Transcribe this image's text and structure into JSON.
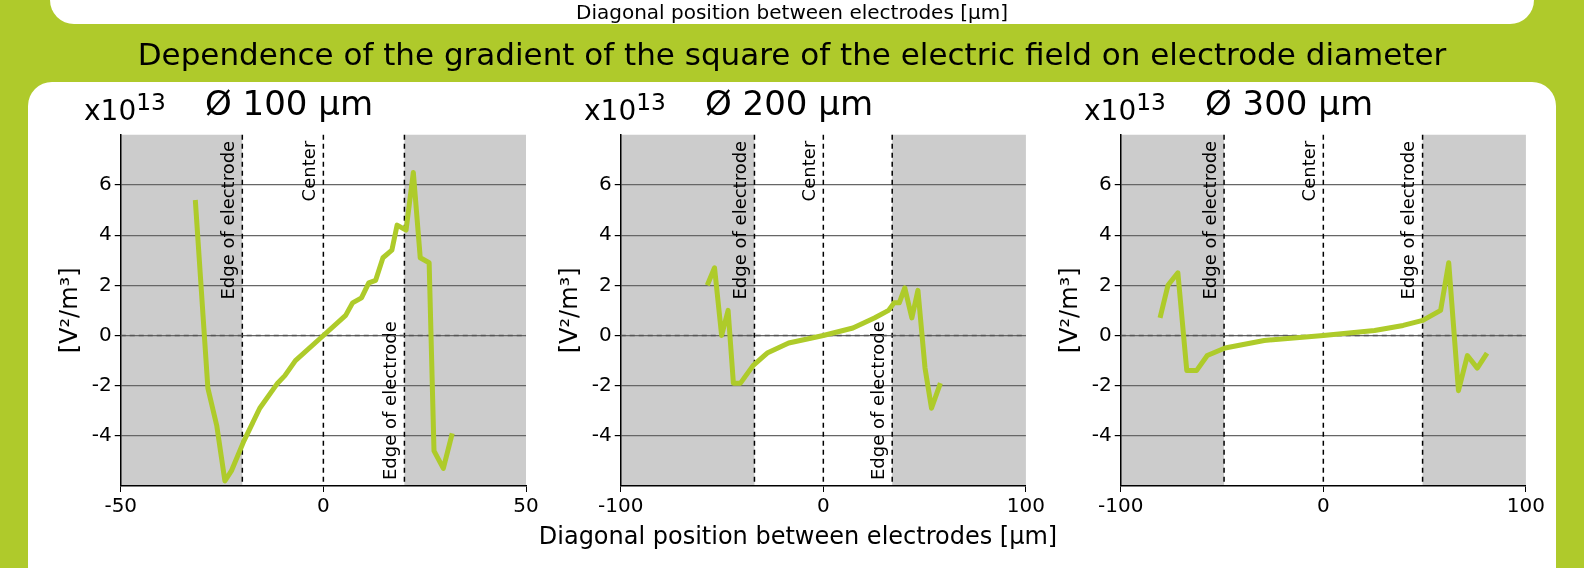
{
  "chart_data": [
    {
      "type": "other",
      "title": "Dependence of the gradient of the square of the electric field on electrode diameter",
      "annotations": [
        "Diagonal position between electrodes [µm]"
      ]
    },
    {
      "type": "line",
      "title": "Ø 100 µm",
      "ylabel": "[V²/m³]",
      "annotations": [
        "x10$^{13}$"
      ],
      "xlim": [
        -50,
        50
      ],
      "xticks": [
        -50,
        0,
        50
      ],
      "ylim": [
        -6,
        8
      ],
      "yticks": [
        -4,
        -2,
        0,
        2,
        4,
        6
      ],
      "grid": "y",
      "legend": false,
      "x": [
        -31.6,
        -28.5,
        -26.3,
        -24.3,
        -22.7,
        -19.6,
        -15.7,
        -11.3,
        -9.5,
        -6.9,
        0,
        5.5,
        7.2,
        9.4,
        11.2,
        12.9,
        14.7,
        16.9,
        18.2,
        20.4,
        22.2,
        23.9,
        26.1,
        27.3,
        29.6,
        31.8
      ],
      "series": [
        {
          "color": "#aecb2a",
          "values": [
            5.4,
            -2.1,
            -3.6,
            -5.8,
            -5.4,
            -4.2,
            -2.9,
            -1.9,
            -1.6,
            -1.0,
            0,
            0.8,
            1.3,
            1.5,
            2.1,
            2.2,
            3.1,
            3.4,
            4.4,
            4.2,
            6.5,
            3.1,
            2.9,
            -4.6,
            -5.3,
            -3.9
          ]
        }
      ],
      "bands": [
        {
          "axis": "x",
          "from": -50,
          "to": -20,
          "color": "#cccccc"
        },
        {
          "axis": "x",
          "from": 20,
          "to": 50,
          "color": "#cccccc"
        }
      ],
      "ref_lines": [
        {
          "axis": "x",
          "value": -20,
          "label": "Edge of electrode",
          "color": "#000000",
          "line_style": "dashed"
        },
        {
          "axis": "x",
          "value": 0,
          "label": "Center",
          "color": "#000000",
          "line_style": "dashed"
        },
        {
          "axis": "x",
          "value": 20,
          "label": "Edge of electrode",
          "color": "#000000",
          "line_style": "dashed"
        },
        {
          "axis": "y",
          "value": 0,
          "color": "#555555",
          "line_style": "dashed"
        }
      ]
    },
    {
      "type": "line",
      "title": "Ø 200 µm",
      "ylabel": "[V²/m³]",
      "xlabel": "Diagonal position between electrodes [µm]",
      "annotations": [
        "x10$^{13}$"
      ],
      "xlim": [
        -100,
        100
      ],
      "xticks": [
        -100,
        0,
        100
      ],
      "ylim": [
        -6,
        8
      ],
      "yticks": [
        -4,
        -2,
        0,
        2,
        4,
        6
      ],
      "grid": "y",
      "legend": false,
      "x": [
        -57.3,
        -53.7,
        -50.2,
        -47.0,
        -44.4,
        -40.9,
        -34.7,
        -27.7,
        -17.1,
        0,
        14.6,
        25.2,
        32.2,
        34.9,
        37.5,
        40.2,
        43.7,
        46.7,
        50.2,
        53.4,
        57.8
      ],
      "series": [
        {
          "color": "#aecb2a",
          "values": [
            2.0,
            2.7,
            0.0,
            1.0,
            -1.9,
            -1.9,
            -1.2,
            -0.7,
            -0.3,
            0,
            0.3,
            0.7,
            1.0,
            1.3,
            1.3,
            1.9,
            0.7,
            1.8,
            -1.3,
            -2.9,
            -1.9
          ]
        }
      ],
      "bands": [
        {
          "axis": "x",
          "from": -100,
          "to": -34,
          "color": "#cccccc"
        },
        {
          "axis": "x",
          "from": 34,
          "to": 100,
          "color": "#cccccc"
        }
      ],
      "ref_lines": [
        {
          "axis": "x",
          "value": -34,
          "label": "Edge of electrode",
          "color": "#000000",
          "line_style": "dashed"
        },
        {
          "axis": "x",
          "value": 0,
          "label": "Center",
          "color": "#000000",
          "line_style": "dashed"
        },
        {
          "axis": "x",
          "value": 34,
          "label": "Edge of electrode",
          "color": "#000000",
          "line_style": "dashed"
        },
        {
          "axis": "y",
          "value": 0,
          "color": "#555555",
          "line_style": "dashed"
        }
      ]
    },
    {
      "type": "line",
      "title": "Ø 300 µm",
      "ylabel": "[V²/m³]",
      "annotations": [
        "x10$^{13}$"
      ],
      "xlim": [
        -100,
        100
      ],
      "xticks": [
        -100,
        0,
        100
      ],
      "ylim": [
        -6,
        8
      ],
      "yticks": [
        -4,
        -2,
        0,
        2,
        4,
        6
      ],
      "grid": "y",
      "legend": false,
      "x": [
        -80.6,
        -76.7,
        -71.8,
        -67.4,
        -62.6,
        -57.3,
        -48.5,
        -29.2,
        0,
        25.3,
        39.4,
        49.1,
        57.9,
        61.9,
        66.7,
        71.1,
        76.0,
        80.8
      ],
      "series": [
        {
          "color": "#aecb2a",
          "values": [
            0.7,
            2.0,
            2.5,
            -1.4,
            -1.4,
            -0.8,
            -0.5,
            -0.2,
            0,
            0.2,
            0.4,
            0.6,
            1.0,
            2.9,
            -2.2,
            -0.8,
            -1.3,
            -0.7
          ]
        }
      ],
      "bands": [
        {
          "axis": "x",
          "from": -100,
          "to": -49,
          "color": "#cccccc"
        },
        {
          "axis": "x",
          "from": 49,
          "to": 100,
          "color": "#cccccc"
        }
      ],
      "ref_lines": [
        {
          "axis": "x",
          "value": -49,
          "label": "Edge of electrode",
          "color": "#000000",
          "line_style": "dashed"
        },
        {
          "axis": "x",
          "value": 0,
          "label": "Center",
          "color": "#000000",
          "line_style": "dashed"
        },
        {
          "axis": "x",
          "value": 49,
          "label": "Edge of electrode",
          "color": "#000000",
          "line_style": "dashed"
        },
        {
          "axis": "y",
          "value": 0,
          "color": "#555555",
          "line_style": "dashed"
        }
      ]
    }
  ]
}
